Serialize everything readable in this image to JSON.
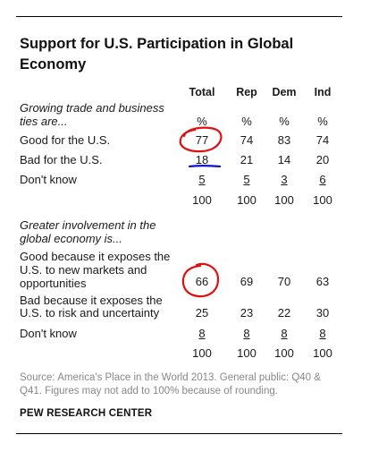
{
  "title": "Support for U.S. Participation in Global Economy",
  "columns": [
    "Total",
    "Rep",
    "Dem",
    "Ind"
  ],
  "section1": {
    "intro_line1": "Growing trade and business",
    "intro_line2": "ties are...",
    "percent_row": [
      "%",
      "%",
      "%",
      "%"
    ],
    "rows": [
      {
        "label": "Good for the U.S.",
        "values": [
          "77",
          "74",
          "83",
          "74"
        ]
      },
      {
        "label": "Bad for the U.S.",
        "values": [
          "18",
          "21",
          "14",
          "20"
        ]
      },
      {
        "label": "Don't know",
        "values": [
          "5",
          "5",
          "3",
          "6"
        ]
      }
    ],
    "totals": [
      "100",
      "100",
      "100",
      "100"
    ]
  },
  "section2": {
    "intro_line1": "Greater involvement in the",
    "intro_line2": "global economy is...",
    "rows": [
      {
        "label_line1": "Good because it exposes the",
        "label_line2": "U.S. to new markets and",
        "label_line3": "opportunities",
        "values": [
          "66",
          "69",
          "70",
          "63"
        ]
      },
      {
        "label_line1": "Bad because it exposes the",
        "label_line2": "U.S. to risk and uncertainty",
        "values": [
          "25",
          "23",
          "22",
          "30"
        ]
      },
      {
        "label": "Don't know",
        "values": [
          "8",
          "8",
          "8",
          "8"
        ]
      }
    ],
    "totals": [
      "100",
      "100",
      "100",
      "100"
    ]
  },
  "source": "Source: America's Place in the World 2013. General public: Q40 & Q41. Figures may not add to 100% because of rounding.",
  "footer": "PEW RESEARCH CENTER",
  "annotation_colors": {
    "circle": "#e01010",
    "underline": "#1010d0"
  }
}
